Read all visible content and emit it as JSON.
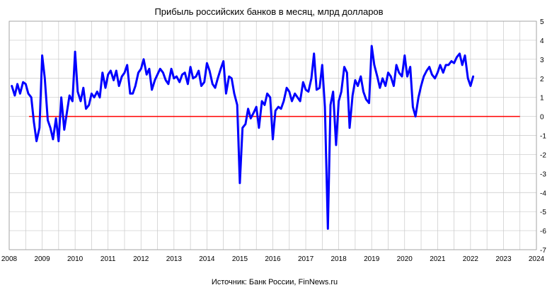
{
  "chart_data": {
    "type": "line",
    "title": "Прибыль российских банков в месяц, млрд долларов",
    "source": "Источник: Банк России, FinNews.ru",
    "xlabel": "",
    "ylabel": "",
    "x_ticks": [
      "2008",
      "2009",
      "2010",
      "2011",
      "2012",
      "2013",
      "2014",
      "2015",
      "2016",
      "2017",
      "2018",
      "2019",
      "2020",
      "2021",
      "2022",
      "2023",
      "2024"
    ],
    "y_ticks": [
      "-7",
      "-6",
      "-5",
      "-4",
      "-3",
      "-2",
      "-1",
      "0",
      "1",
      "2",
      "3",
      "4",
      "5"
    ],
    "xlim": [
      2008,
      2024
    ],
    "ylim": [
      -7,
      5
    ],
    "grid": true,
    "zero_line_color": "#ff0000",
    "zero_line_range": [
      2008.6,
      2023.5
    ],
    "series": [
      {
        "color": "#0000ff",
        "points": [
          [
            2008.08,
            1.6
          ],
          [
            2008.17,
            1.1
          ],
          [
            2008.25,
            1.7
          ],
          [
            2008.33,
            1.2
          ],
          [
            2008.42,
            1.8
          ],
          [
            2008.5,
            1.7
          ],
          [
            2008.58,
            1.2
          ],
          [
            2008.67,
            1.0
          ],
          [
            2008.75,
            -0.3
          ],
          [
            2008.83,
            -1.3
          ],
          [
            2008.92,
            -0.6
          ],
          [
            2009.0,
            3.2
          ],
          [
            2009.08,
            2.0
          ],
          [
            2009.17,
            -0.2
          ],
          [
            2009.25,
            -0.6
          ],
          [
            2009.33,
            -1.2
          ],
          [
            2009.42,
            -0.1
          ],
          [
            2009.5,
            -1.3
          ],
          [
            2009.58,
            1.0
          ],
          [
            2009.67,
            -0.7
          ],
          [
            2009.75,
            0.2
          ],
          [
            2009.83,
            1.1
          ],
          [
            2009.92,
            0.8
          ],
          [
            2010.0,
            3.4
          ],
          [
            2010.08,
            1.3
          ],
          [
            2010.17,
            0.8
          ],
          [
            2010.25,
            1.5
          ],
          [
            2010.33,
            0.4
          ],
          [
            2010.42,
            0.6
          ],
          [
            2010.5,
            1.2
          ],
          [
            2010.58,
            1.0
          ],
          [
            2010.67,
            1.3
          ],
          [
            2010.75,
            1.0
          ],
          [
            2010.83,
            2.3
          ],
          [
            2010.92,
            1.5
          ],
          [
            2011.0,
            2.2
          ],
          [
            2011.08,
            2.4
          ],
          [
            2011.17,
            1.9
          ],
          [
            2011.25,
            2.4
          ],
          [
            2011.33,
            1.6
          ],
          [
            2011.42,
            2.1
          ],
          [
            2011.5,
            2.3
          ],
          [
            2011.58,
            2.7
          ],
          [
            2011.67,
            1.2
          ],
          [
            2011.75,
            1.2
          ],
          [
            2011.83,
            1.6
          ],
          [
            2011.92,
            2.3
          ],
          [
            2012.0,
            2.5
          ],
          [
            2012.08,
            3.0
          ],
          [
            2012.17,
            2.2
          ],
          [
            2012.25,
            2.5
          ],
          [
            2012.33,
            1.4
          ],
          [
            2012.42,
            1.9
          ],
          [
            2012.5,
            2.2
          ],
          [
            2012.58,
            2.5
          ],
          [
            2012.67,
            2.3
          ],
          [
            2012.75,
            1.9
          ],
          [
            2012.83,
            1.7
          ],
          [
            2012.92,
            2.5
          ],
          [
            2013.0,
            2.0
          ],
          [
            2013.08,
            2.1
          ],
          [
            2013.17,
            1.8
          ],
          [
            2013.25,
            2.2
          ],
          [
            2013.33,
            2.3
          ],
          [
            2013.42,
            1.7
          ],
          [
            2013.5,
            2.6
          ],
          [
            2013.58,
            2.0
          ],
          [
            2013.67,
            2.1
          ],
          [
            2013.75,
            2.4
          ],
          [
            2013.83,
            1.6
          ],
          [
            2013.92,
            1.8
          ],
          [
            2014.0,
            2.8
          ],
          [
            2014.08,
            2.4
          ],
          [
            2014.17,
            1.7
          ],
          [
            2014.25,
            1.5
          ],
          [
            2014.33,
            2.0
          ],
          [
            2014.42,
            2.5
          ],
          [
            2014.5,
            2.9
          ],
          [
            2014.58,
            1.2
          ],
          [
            2014.67,
            2.1
          ],
          [
            2014.75,
            2.0
          ],
          [
            2014.83,
            1.2
          ],
          [
            2014.92,
            0.6
          ],
          [
            2015.0,
            -3.5
          ],
          [
            2015.08,
            -0.6
          ],
          [
            2015.17,
            -0.4
          ],
          [
            2015.25,
            0.4
          ],
          [
            2015.33,
            -0.1
          ],
          [
            2015.42,
            0.2
          ],
          [
            2015.5,
            0.5
          ],
          [
            2015.58,
            -0.6
          ],
          [
            2015.67,
            0.8
          ],
          [
            2015.75,
            0.6
          ],
          [
            2015.83,
            1.2
          ],
          [
            2015.92,
            1.0
          ],
          [
            2016.0,
            -1.2
          ],
          [
            2016.08,
            0.3
          ],
          [
            2016.17,
            0.5
          ],
          [
            2016.25,
            0.4
          ],
          [
            2016.33,
            0.8
          ],
          [
            2016.42,
            1.5
          ],
          [
            2016.5,
            1.3
          ],
          [
            2016.58,
            0.8
          ],
          [
            2016.67,
            1.2
          ],
          [
            2016.75,
            1.0
          ],
          [
            2016.83,
            0.8
          ],
          [
            2016.92,
            1.8
          ],
          [
            2017.0,
            1.4
          ],
          [
            2017.08,
            1.3
          ],
          [
            2017.17,
            2.0
          ],
          [
            2017.25,
            3.3
          ],
          [
            2017.33,
            1.4
          ],
          [
            2017.42,
            1.5
          ],
          [
            2017.5,
            2.7
          ],
          [
            2017.58,
            0.5
          ],
          [
            2017.67,
            -5.9
          ],
          [
            2017.75,
            0.6
          ],
          [
            2017.83,
            1.3
          ],
          [
            2017.92,
            -1.5
          ],
          [
            2018.0,
            0.8
          ],
          [
            2018.08,
            1.3
          ],
          [
            2018.17,
            2.6
          ],
          [
            2018.25,
            2.3
          ],
          [
            2018.33,
            -0.6
          ],
          [
            2018.42,
            1.1
          ],
          [
            2018.5,
            1.9
          ],
          [
            2018.58,
            1.6
          ],
          [
            2018.67,
            2.1
          ],
          [
            2018.75,
            1.3
          ],
          [
            2018.83,
            0.9
          ],
          [
            2018.92,
            0.7
          ],
          [
            2019.0,
            3.7
          ],
          [
            2019.08,
            2.7
          ],
          [
            2019.17,
            2.1
          ],
          [
            2019.25,
            1.5
          ],
          [
            2019.33,
            2.0
          ],
          [
            2019.42,
            1.6
          ],
          [
            2019.5,
            2.3
          ],
          [
            2019.58,
            2.1
          ],
          [
            2019.67,
            1.6
          ],
          [
            2019.75,
            2.7
          ],
          [
            2019.83,
            2.3
          ],
          [
            2019.92,
            2.1
          ],
          [
            2020.0,
            3.2
          ],
          [
            2020.08,
            2.1
          ],
          [
            2020.17,
            2.6
          ],
          [
            2020.25,
            0.5
          ],
          [
            2020.33,
            0.0
          ],
          [
            2020.42,
            1.0
          ],
          [
            2020.5,
            1.6
          ],
          [
            2020.58,
            2.1
          ],
          [
            2020.67,
            2.4
          ],
          [
            2020.75,
            2.6
          ],
          [
            2020.83,
            2.2
          ],
          [
            2020.92,
            2.0
          ],
          [
            2021.0,
            2.3
          ],
          [
            2021.08,
            2.7
          ],
          [
            2021.17,
            2.3
          ],
          [
            2021.25,
            2.7
          ],
          [
            2021.33,
            2.7
          ],
          [
            2021.42,
            2.9
          ],
          [
            2021.5,
            2.8
          ],
          [
            2021.58,
            3.1
          ],
          [
            2021.67,
            3.3
          ],
          [
            2021.75,
            2.7
          ],
          [
            2021.83,
            3.2
          ],
          [
            2021.92,
            2.0
          ],
          [
            2022.0,
            1.6
          ],
          [
            2022.08,
            2.1
          ]
        ]
      }
    ]
  }
}
